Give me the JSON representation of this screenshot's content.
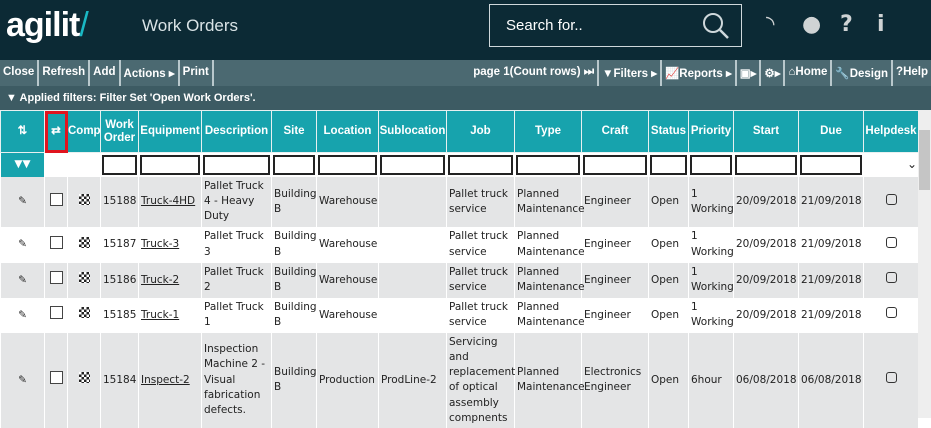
{
  "header": {
    "logo": "agilit",
    "logo_accent": "/",
    "title": "Work Orders",
    "search_placeholder": "Search for..",
    "icons": [
      "rss-icon",
      "globe-icon",
      "help-icon",
      "info-icon"
    ]
  },
  "toolbar": {
    "close": "Close",
    "refresh": "Refresh",
    "add": "Add",
    "actions": "Actions ▸",
    "print": "Print",
    "page": "page 1(Count rows)",
    "filters": "Filters ▸",
    "reports": "Reports ▸",
    "excel": "▸",
    "settings": "▸",
    "home": "Home",
    "design": "Design",
    "help": "Help"
  },
  "filter_bar": {
    "text": "Applied filters: Filter Set 'Open Work Orders'."
  },
  "columns": [
    "Comp",
    "Work Order",
    "Equipment",
    "Description",
    "Site",
    "Location",
    "Sublocation",
    "Job",
    "Type",
    "Craft",
    "Status",
    "Priority",
    "Start",
    "Due",
    "Helpdesk"
  ],
  "rows": [
    {
      "wo": "15188",
      "equipment": "Truck-4HD",
      "description": "Pallet Truck 4 - Heavy Duty",
      "site": "Building B",
      "location": "Warehouse",
      "sublocation": "",
      "job": "Pallet truck service",
      "type": "Planned Maintenance",
      "craft": "Engineer",
      "status": "Open",
      "priority": "1 Working",
      "start": "20/09/2018",
      "due": "21/09/2018"
    },
    {
      "wo": "15187",
      "equipment": "Truck-3",
      "description": "Pallet Truck 3",
      "site": "Building B",
      "location": "Warehouse",
      "sublocation": "",
      "job": "Pallet truck service",
      "type": "Planned Maintenance",
      "craft": "Engineer",
      "status": "Open",
      "priority": "1 Working",
      "start": "20/09/2018",
      "due": "21/09/2018"
    },
    {
      "wo": "15186",
      "equipment": "Truck-2",
      "description": "Pallet Truck 2",
      "site": "Building B",
      "location": "Warehouse",
      "sublocation": "",
      "job": "Pallet truck service",
      "type": "Planned Maintenance",
      "craft": "Engineer",
      "status": "Open",
      "priority": "1 Working",
      "start": "20/09/2018",
      "due": "21/09/2018"
    },
    {
      "wo": "15185",
      "equipment": "Truck-1",
      "description": "Pallet Truck 1",
      "site": "Building B",
      "location": "Warehouse",
      "sublocation": "",
      "job": "Pallet truck service",
      "type": "Planned Maintenance",
      "craft": "Engineer",
      "status": "Open",
      "priority": "1 Working",
      "start": "20/09/2018",
      "due": "21/09/2018"
    },
    {
      "wo": "15184",
      "equipment": "Inspect-2",
      "description": "Inspection Machine 2 - Visual fabrication defects.",
      "site": "Building B",
      "location": "Production",
      "sublocation": "ProdLine-2",
      "job": "Servicing and replacement of optical assembly compnents",
      "type": "Planned Maintenance",
      "craft": "Electronics Engineer",
      "status": "Open",
      "priority": "6hour",
      "start": "06/08/2018",
      "due": "06/08/2018"
    }
  ],
  "colors": {
    "topbar": "#0c2a35",
    "toolbar": "#4b6971",
    "header": "#17a3ad",
    "highlight": "#e0141e"
  }
}
